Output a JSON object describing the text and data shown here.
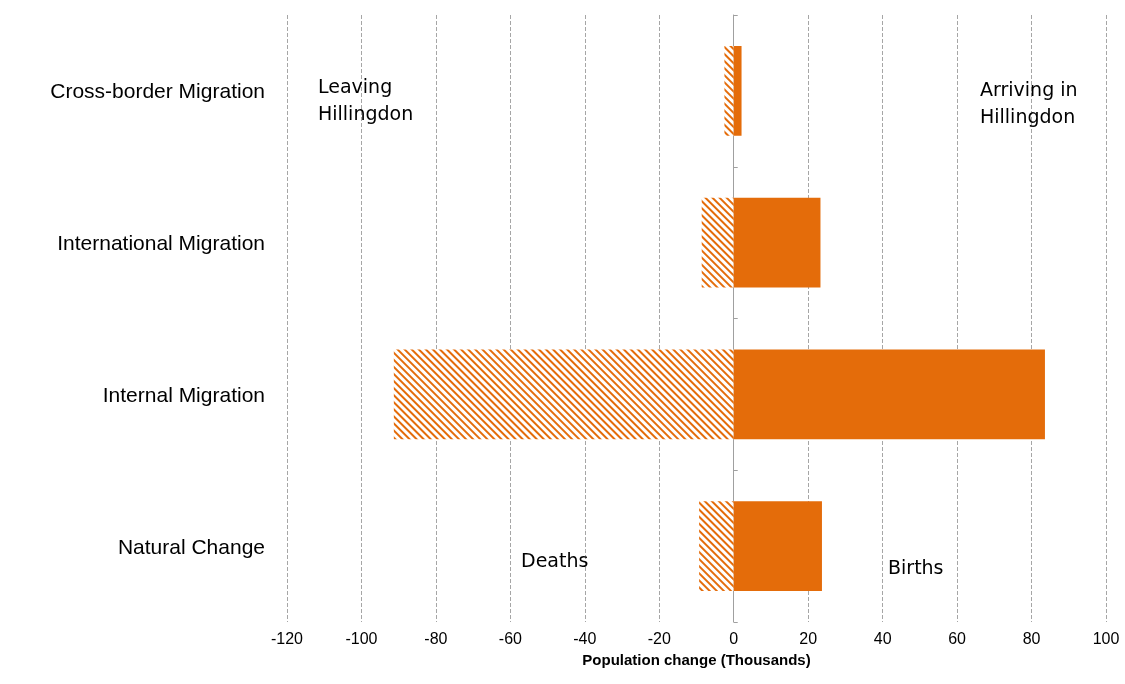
{
  "chart_data": {
    "type": "bar",
    "orientation": "horizontal",
    "categories": [
      "Cross-border Migration",
      "International Migration",
      "Internal Migration",
      "Natural Change"
    ],
    "series": [
      {
        "color": "#e46c0a",
        "values": [
          -2.5,
          -8.6,
          -91.3,
          -9.3
        ]
      },
      {
        "color": "#e46c0a",
        "values": [
          2.1,
          23.3,
          83.6,
          23.7
        ]
      }
    ],
    "xlabel": "Population change (Thousands)",
    "xlim": [
      -120,
      100
    ],
    "xticks": [
      -120,
      -100,
      -80,
      -60,
      -40,
      -20,
      0,
      20,
      40,
      60,
      80,
      100
    ],
    "grid": "x",
    "stacked": true,
    "annotations": [
      "Leaving\nHillingdon",
      "Arriving in\nHillingdon",
      "Deaths",
      "Births"
    ]
  }
}
